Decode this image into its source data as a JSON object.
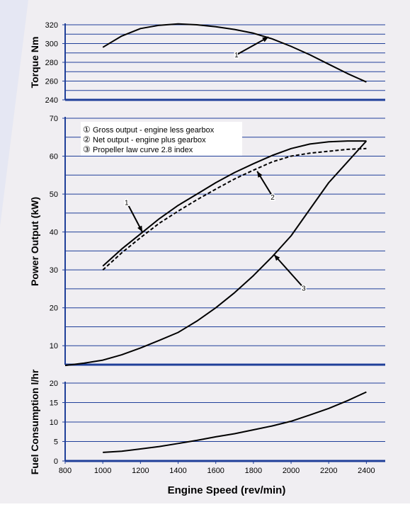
{
  "colors": {
    "background": "#f0eef2",
    "watermark": "#e2e5f2",
    "gridline": "#1f3f99",
    "axis": "#1f3f99",
    "curve": "#000000",
    "text": "#000000"
  },
  "xlabel": "Engine Speed (rev/min)",
  "x_ticks": [
    800,
    1000,
    1200,
    1400,
    1600,
    1800,
    2000,
    2200,
    2400
  ],
  "xlim": [
    800,
    2500
  ],
  "chart_data": [
    {
      "type": "line",
      "ylabel": "Torque Nm",
      "ylim": [
        240,
        320
      ],
      "y_ticks": [
        240,
        260,
        280,
        300,
        320
      ],
      "grid": true,
      "series": [
        {
          "name": "1",
          "style": "solid",
          "x": [
            1000,
            1100,
            1200,
            1300,
            1400,
            1500,
            1600,
            1700,
            1800,
            1900,
            2000,
            2100,
            2200,
            2300,
            2400
          ],
          "y": [
            296,
            308,
            316,
            319.5,
            321,
            320,
            318,
            315,
            311,
            305,
            297,
            288,
            278,
            268,
            259
          ]
        }
      ],
      "annotations": [
        {
          "label": "1",
          "points_to_x": 1880,
          "points_to_y": 307
        }
      ]
    },
    {
      "type": "line",
      "ylabel": "Power Output (kW)",
      "ylim": [
        5,
        70
      ],
      "y_ticks": [
        10,
        20,
        30,
        40,
        50,
        60,
        70
      ],
      "grid": true,
      "legend": [
        {
          "marker": "①",
          "text": "Gross output - engine less gearbox"
        },
        {
          "marker": "②",
          "text": "Net output - engine plus gearbox"
        },
        {
          "marker": "③",
          "text": "Propeller law curve 2.8 index"
        }
      ],
      "series": [
        {
          "name": "1",
          "style": "solid",
          "x": [
            1000,
            1100,
            1200,
            1300,
            1400,
            1500,
            1600,
            1700,
            1800,
            1900,
            2000,
            2100,
            2200,
            2300,
            2400
          ],
          "y": [
            31,
            35.5,
            39.5,
            43.5,
            47,
            50,
            53,
            55.7,
            58,
            60.2,
            62,
            63.2,
            63.8,
            64,
            64
          ]
        },
        {
          "name": "2",
          "style": "dashed",
          "x": [
            1000,
            1100,
            1200,
            1300,
            1400,
            1500,
            1600,
            1700,
            1800,
            1900,
            2000,
            2100,
            2200,
            2300,
            2400
          ],
          "y": [
            30,
            34.5,
            38.5,
            42.3,
            45.5,
            48.5,
            51.3,
            54,
            56.3,
            58.5,
            60,
            60.8,
            61.3,
            61.8,
            62
          ]
        },
        {
          "name": "3",
          "style": "solid",
          "x": [
            800,
            900,
            1000,
            1100,
            1200,
            1300,
            1400,
            1500,
            1600,
            1700,
            1800,
            1900,
            2000,
            2100,
            2200,
            2300,
            2400
          ],
          "y": [
            4.8,
            5.4,
            6.2,
            7.6,
            9.4,
            11.4,
            13.5,
            16.5,
            20,
            24,
            28.5,
            33.5,
            39,
            46,
            53,
            58.5,
            64
          ]
        }
      ],
      "annotations": [
        {
          "label": "1",
          "points_to_x": 1210,
          "points_to_y": 40
        },
        {
          "label": "2",
          "points_to_x": 1820,
          "points_to_y": 56
        },
        {
          "label": "3",
          "points_to_x": 1910,
          "points_to_y": 34
        }
      ]
    },
    {
      "type": "line",
      "ylabel": "Fuel Consumption l/hr",
      "ylim": [
        0,
        20
      ],
      "y_ticks": [
        0,
        5,
        10,
        15,
        20
      ],
      "grid": true,
      "series": [
        {
          "name": "",
          "style": "solid",
          "x": [
            1000,
            1100,
            1200,
            1300,
            1400,
            1500,
            1600,
            1700,
            1800,
            1900,
            2000,
            2100,
            2200,
            2300,
            2400
          ],
          "y": [
            2.2,
            2.5,
            3.1,
            3.7,
            4.5,
            5.3,
            6.2,
            7,
            8,
            9,
            10.2,
            11.8,
            13.5,
            15.5,
            17.7
          ]
        }
      ]
    }
  ]
}
